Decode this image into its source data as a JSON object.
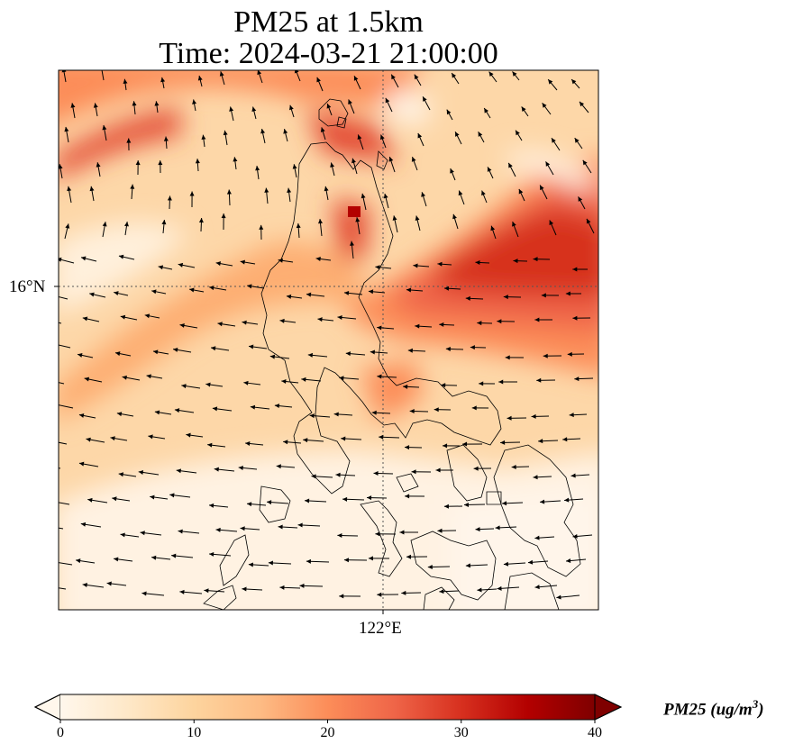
{
  "title": {
    "line1": "PM25 at 1.5km",
    "line2": "Time: 2024-03-21 21:00:00"
  },
  "axes": {
    "lat_label": "16°N",
    "lon_label": "122°E"
  },
  "colorbar": {
    "label_main": "PM25 (ug/m",
    "label_sup": "3",
    "label_end": ")",
    "ticks": [
      "0",
      "10",
      "20",
      "30",
      "40"
    ],
    "min": 0,
    "max": 40,
    "extend": "both",
    "colormap": "OrRd",
    "colors": [
      "#fff7ec",
      "#fee8c8",
      "#fdd49e",
      "#fdbb84",
      "#fc8d59",
      "#ef6548",
      "#d7301f",
      "#b30000",
      "#7f0000"
    ]
  },
  "map": {
    "gridlines": "dotted",
    "wind_vectors": "black arrows",
    "coastline_color": "#000000"
  }
}
